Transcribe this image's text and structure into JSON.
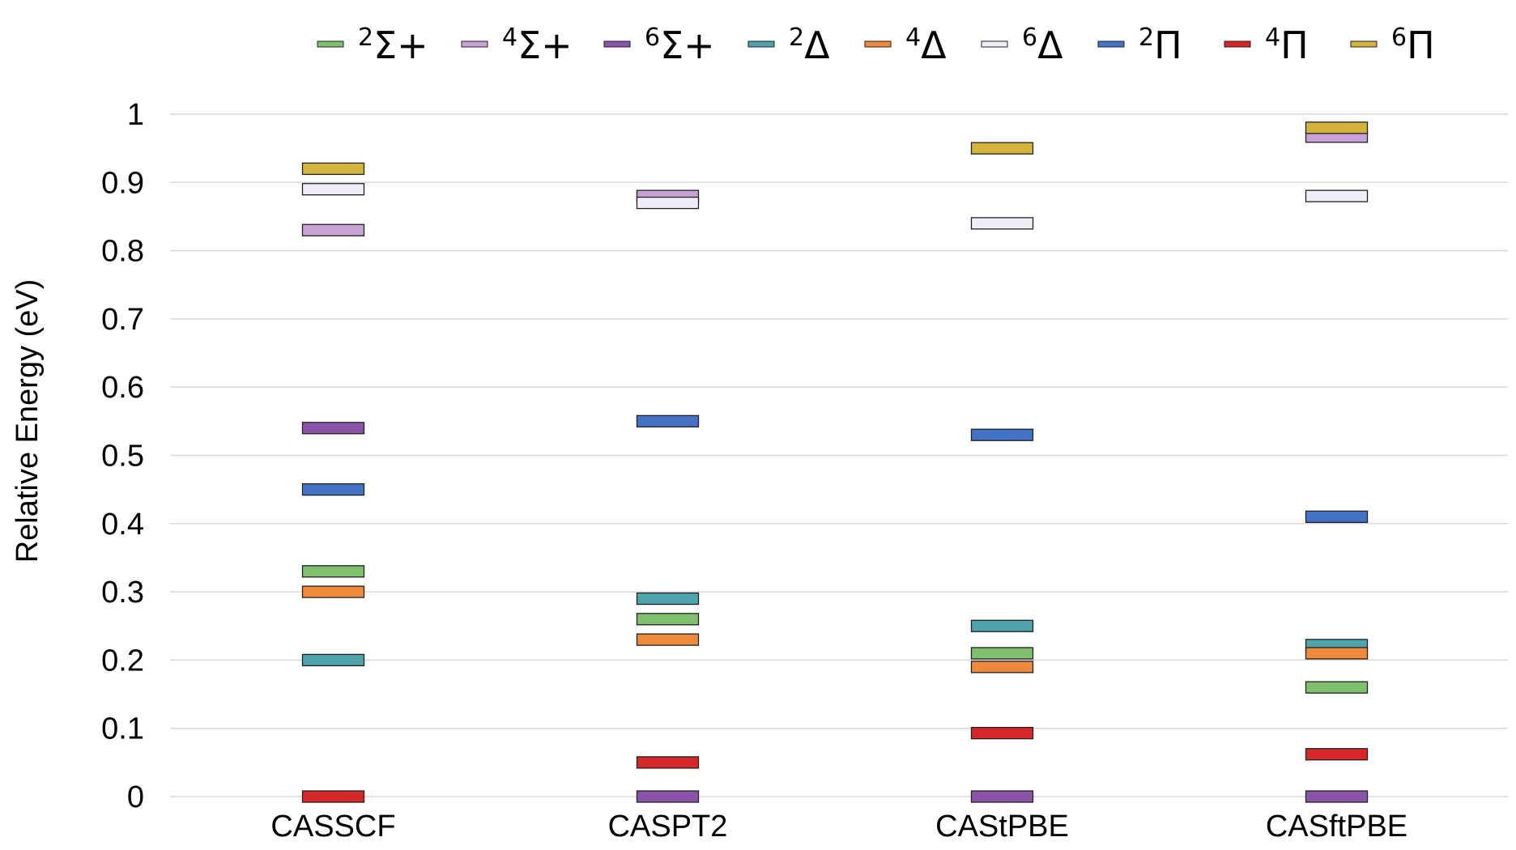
{
  "chart_data": {
    "type": "bar",
    "chart_style": "energy-level diagram",
    "title": "",
    "xlabel": "",
    "ylabel": "Relative Energy (eV)",
    "ylim": [
      0,
      1
    ],
    "yticks": [
      0,
      0.1,
      0.2,
      0.3,
      0.4,
      0.5,
      0.6,
      0.7,
      0.8,
      0.9,
      1
    ],
    "ytick_labels": [
      "0",
      "0.1",
      "0.2",
      "0.3",
      "0.4",
      "0.5",
      "0.6",
      "0.7",
      "0.8",
      "0.9",
      "1"
    ],
    "grid": true,
    "legend_position": "top",
    "categories": [
      "CASSCF",
      "CASPT2",
      "CAStPBE",
      "CASftPBE"
    ],
    "series": [
      {
        "name": "²Σ+",
        "sup": "2",
        "symbol": "Σ+",
        "color": "#7fbf6e",
        "values": [
          0.33,
          0.26,
          0.21,
          0.16
        ]
      },
      {
        "name": "⁴Σ+",
        "sup": "4",
        "symbol": "Σ+",
        "color": "#c8a2d6",
        "values": [
          0.83,
          0.88,
          null,
          0.967
        ]
      },
      {
        "name": "⁶Σ+",
        "sup": "6",
        "symbol": "Σ+",
        "color": "#8a55a8",
        "values": [
          0.54,
          0.0,
          0.0,
          0.0
        ]
      },
      {
        "name": "²Δ",
        "sup": "2",
        "symbol": "Δ",
        "color": "#4fa3ad",
        "values": [
          0.2,
          0.29,
          0.25,
          0.222
        ]
      },
      {
        "name": "⁴Δ",
        "sup": "4",
        "symbol": "Δ",
        "color": "#ee8a3c",
        "values": [
          0.3,
          0.23,
          0.19,
          0.21
        ]
      },
      {
        "name": "⁶Δ",
        "sup": "6",
        "symbol": "Δ",
        "color": "#eeeef8",
        "values": [
          0.89,
          0.87,
          0.84,
          0.88
        ]
      },
      {
        "name": "²Π",
        "sup": "2",
        "symbol": "Π",
        "color": "#4472c4",
        "values": [
          0.45,
          0.55,
          0.53,
          0.41
        ]
      },
      {
        "name": "⁴Π",
        "sup": "4",
        "symbol": "Π",
        "color": "#d62828",
        "values": [
          0.0,
          0.05,
          0.093,
          0.062
        ]
      },
      {
        "name": "⁶Π",
        "sup": "6",
        "symbol": "Π",
        "color": "#d4b43c",
        "values": [
          0.92,
          null,
          0.95,
          0.98
        ]
      }
    ]
  }
}
